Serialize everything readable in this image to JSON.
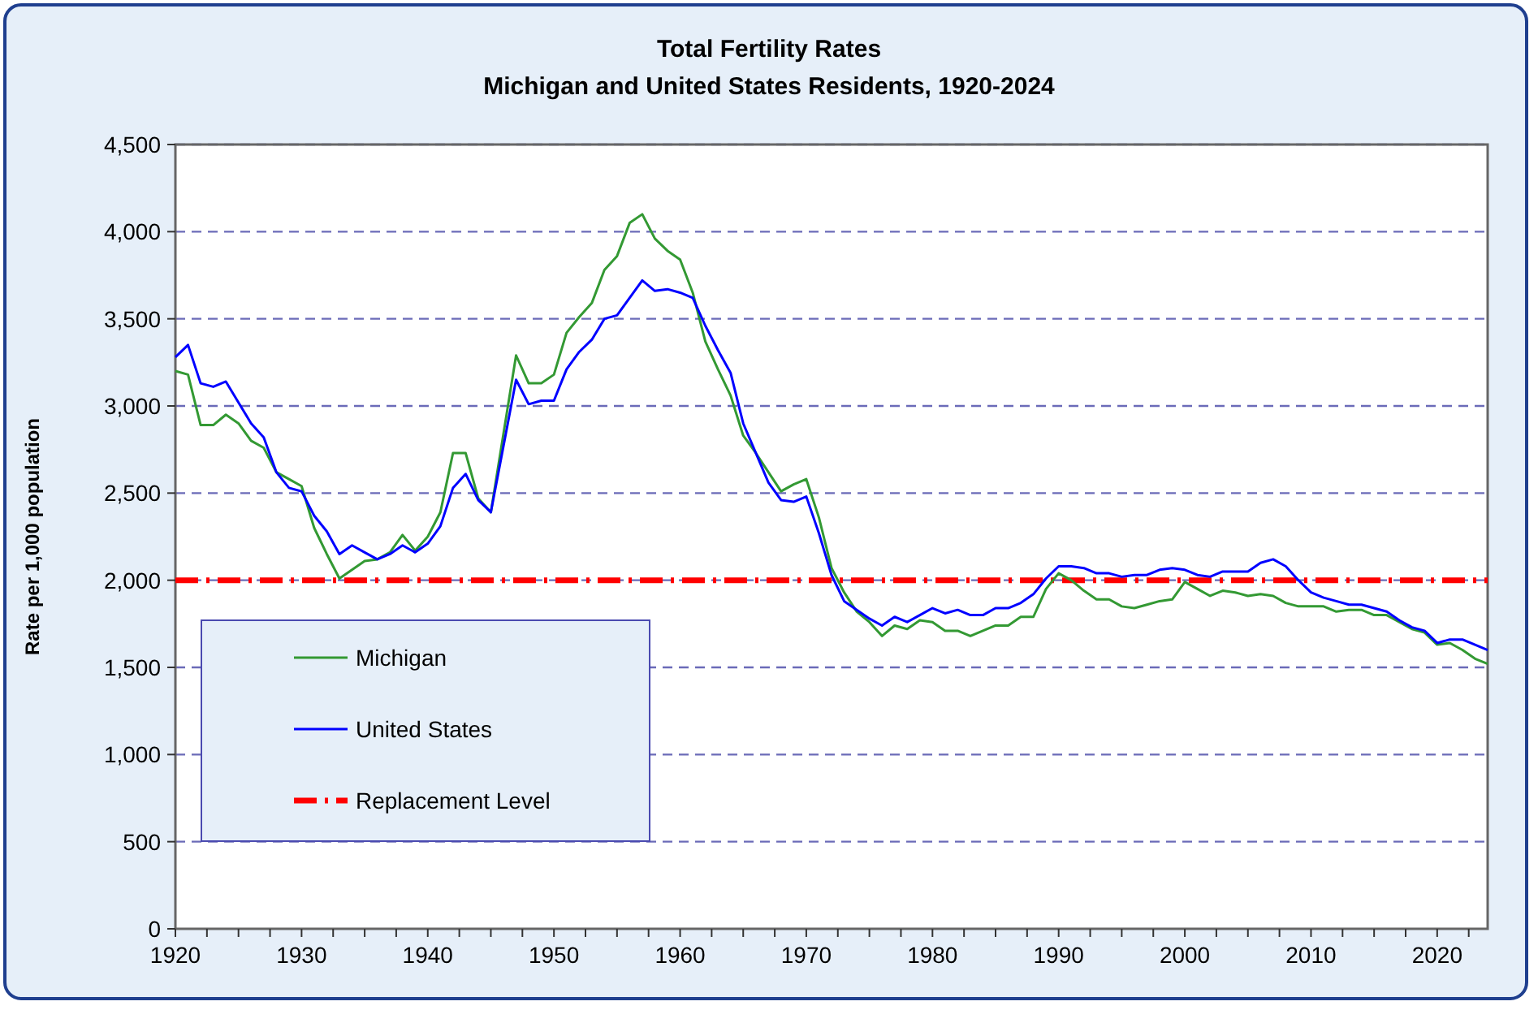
{
  "chart_data": {
    "type": "line",
    "title": "Total Fertility Rates",
    "subtitle": "Michigan and United States Residents, 1920-2024",
    "ylabel": "Rate per 1,000 population",
    "x": [
      1920,
      1921,
      1922,
      1923,
      1924,
      1925,
      1926,
      1927,
      1928,
      1929,
      1930,
      1931,
      1932,
      1933,
      1934,
      1935,
      1936,
      1937,
      1938,
      1939,
      1940,
      1941,
      1942,
      1943,
      1944,
      1945,
      1946,
      1947,
      1948,
      1949,
      1950,
      1951,
      1952,
      1953,
      1954,
      1955,
      1956,
      1957,
      1958,
      1959,
      1960,
      1961,
      1962,
      1963,
      1964,
      1965,
      1966,
      1967,
      1968,
      1969,
      1970,
      1971,
      1972,
      1973,
      1974,
      1975,
      1976,
      1977,
      1978,
      1979,
      1980,
      1981,
      1982,
      1983,
      1984,
      1985,
      1986,
      1987,
      1988,
      1989,
      1990,
      1991,
      1992,
      1993,
      1994,
      1995,
      1996,
      1997,
      1998,
      1999,
      2000,
      2001,
      2002,
      2003,
      2004,
      2005,
      2006,
      2007,
      2008,
      2009,
      2010,
      2011,
      2012,
      2013,
      2014,
      2015,
      2016,
      2017,
      2018,
      2019,
      2020,
      2021,
      2022,
      2023,
      2024
    ],
    "series": [
      {
        "name": "Michigan",
        "color": "#339933",
        "values": [
          3200,
          3180,
          2890,
          2890,
          2950,
          2900,
          2800,
          2760,
          2620,
          2580,
          2540,
          2300,
          2150,
          2010,
          2060,
          2110,
          2120,
          2160,
          2260,
          2170,
          2250,
          2390,
          2730,
          2730,
          2470,
          2390,
          2840,
          3290,
          3130,
          3130,
          3180,
          3420,
          3510,
          3590,
          3780,
          3860,
          4050,
          4100,
          3960,
          3890,
          3840,
          3650,
          3370,
          3210,
          3060,
          2830,
          2730,
          2620,
          2510,
          2550,
          2580,
          2360,
          2070,
          1930,
          1820,
          1760,
          1680,
          1740,
          1720,
          1770,
          1760,
          1710,
          1710,
          1680,
          1710,
          1740,
          1740,
          1790,
          1790,
          1950,
          2040,
          2000,
          1940,
          1890,
          1890,
          1850,
          1840,
          1860,
          1880,
          1890,
          1990,
          1950,
          1910,
          1940,
          1930,
          1910,
          1920,
          1910,
          1870,
          1850,
          1850,
          1850,
          1820,
          1830,
          1830,
          1800,
          1800,
          1760,
          1720,
          1700,
          1630,
          1640,
          1600,
          1550,
          1520
        ]
      },
      {
        "name": "United States",
        "color": "#0000ff",
        "values": [
          3280,
          3350,
          3130,
          3110,
          3140,
          3020,
          2900,
          2820,
          2620,
          2530,
          2510,
          2370,
          2280,
          2150,
          2200,
          2160,
          2120,
          2150,
          2200,
          2160,
          2210,
          2310,
          2530,
          2610,
          2460,
          2390,
          2770,
          3150,
          3010,
          3030,
          3030,
          3210,
          3310,
          3380,
          3500,
          3520,
          3620,
          3720,
          3660,
          3670,
          3650,
          3620,
          3460,
          3320,
          3190,
          2900,
          2730,
          2560,
          2460,
          2450,
          2480,
          2270,
          2030,
          1880,
          1830,
          1780,
          1740,
          1790,
          1760,
          1800,
          1840,
          1810,
          1830,
          1800,
          1800,
          1840,
          1840,
          1870,
          1920,
          2010,
          2080,
          2080,
          2070,
          2040,
          2040,
          2020,
          2030,
          2030,
          2060,
          2070,
          2060,
          2030,
          2020,
          2050,
          2050,
          2050,
          2100,
          2120,
          2080,
          2000,
          1930,
          1900,
          1880,
          1860,
          1860,
          1840,
          1820,
          1770,
          1730,
          1710,
          1640,
          1660,
          1660,
          1630,
          1600
        ]
      }
    ],
    "ref_lines": [
      {
        "axis": "y",
        "value": 2000,
        "label": "Replacement Level",
        "color": "#ff0000",
        "line_style": "dashdot"
      }
    ],
    "xlim": [
      1920,
      2024
    ],
    "xticks": [
      1920,
      {
        "value": 1922.5,
        "label": null
      },
      {
        "value": 1925,
        "label": null
      },
      {
        "value": 1927.5,
        "label": null
      },
      1930,
      {
        "value": 1932.5,
        "label": null
      },
      {
        "value": 1935,
        "label": null
      },
      {
        "value": 1937.5,
        "label": null
      },
      1940,
      {
        "value": 1942.5,
        "label": null
      },
      {
        "value": 1945,
        "label": null
      },
      {
        "value": 1947.5,
        "label": null
      },
      1950,
      {
        "value": 1952.5,
        "label": null
      },
      {
        "value": 1955,
        "label": null
      },
      {
        "value": 1957.5,
        "label": null
      },
      1960,
      {
        "value": 1962.5,
        "label": null
      },
      {
        "value": 1965,
        "label": null
      },
      {
        "value": 1967.5,
        "label": null
      },
      1970,
      {
        "value": 1972.5,
        "label": null
      },
      {
        "value": 1975,
        "label": null
      },
      {
        "value": 1977.5,
        "label": null
      },
      1980,
      {
        "value": 1982.5,
        "label": null
      },
      {
        "value": 1985,
        "label": null
      },
      {
        "value": 1987.5,
        "label": null
      },
      1990,
      {
        "value": 1992.5,
        "label": null
      },
      {
        "value": 1995,
        "label": null
      },
      {
        "value": 1997.5,
        "label": null
      },
      2000,
      {
        "value": 2002.5,
        "label": null
      },
      {
        "value": 2005,
        "label": null
      },
      {
        "value": 2007.5,
        "label": null
      },
      2010,
      {
        "value": 2012.5,
        "label": null
      },
      {
        "value": 2015,
        "label": null
      },
      {
        "value": 2017.5,
        "label": null
      },
      2020,
      {
        "value": 2022.5,
        "label": null
      }
    ],
    "ylim": [
      0,
      4500
    ],
    "yticks": [
      0,
      500,
      {
        "value": 1000,
        "label": "1,000"
      },
      {
        "value": 1500,
        "label": "1,500"
      },
      {
        "value": 2000,
        "label": "2,000"
      },
      {
        "value": 2500,
        "label": "2,500"
      },
      {
        "value": 3000,
        "label": "3,000"
      },
      {
        "value": 3500,
        "label": "3,500"
      },
      {
        "value": 4000,
        "label": "4,000"
      },
      {
        "value": 4500,
        "label": "4,500"
      }
    ],
    "grid": "y",
    "legend": "bottom left",
    "marker": "none",
    "line_style": "solid"
  }
}
